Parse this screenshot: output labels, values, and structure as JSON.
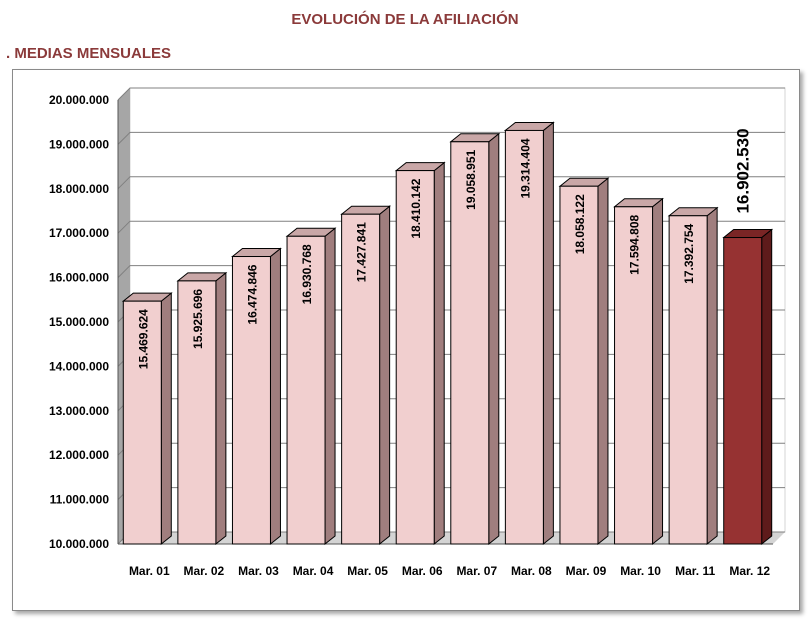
{
  "title": "EVOLUCIÓN DE LA AFILIACIÓN",
  "subtitle": ". MEDIAS MENSUALES",
  "colors": {
    "bar_fill": "#f1cfcf",
    "bar_side": "#a07e7e",
    "bar_top": "#c9a7a7",
    "highlight_fill": "#963232",
    "highlight_side": "#5e1b1b",
    "highlight_top": "#7a2525",
    "wall": "#d4d4d4",
    "wall_side": "#a6a6a6"
  },
  "chart_data": {
    "type": "bar",
    "categories": [
      "Mar. 01",
      "Mar. 02",
      "Mar. 03",
      "Mar. 04",
      "Mar. 05",
      "Mar. 06",
      "Mar. 07",
      "Mar. 08",
      "Mar. 09",
      "Mar. 10",
      "Mar. 11",
      "Mar. 12"
    ],
    "values": [
      15469624,
      15925696,
      16474846,
      16930768,
      17427841,
      18410142,
      19058951,
      19314404,
      18058122,
      17594808,
      17392754,
      16902530
    ],
    "data_labels": [
      "15.469.624",
      "15.925.696",
      "16.474.846",
      "16.930.768",
      "17.427.841",
      "18.410.142",
      "19.058.951",
      "19.314.404",
      "18.058.122",
      "17.594.808",
      "17.392.754",
      "16.902.530"
    ],
    "highlight_index": 11,
    "ylim": [
      10000000,
      20000000
    ],
    "yticks": [
      10000000,
      11000000,
      12000000,
      13000000,
      14000000,
      15000000,
      16000000,
      17000000,
      18000000,
      19000000,
      20000000
    ],
    "ytick_labels": [
      "10.000.000",
      "11.000.000",
      "12.000.000",
      "13.000.000",
      "14.000.000",
      "15.000.000",
      "16.000.000",
      "17.000.000",
      "18.000.000",
      "19.000.000",
      "20.000.000"
    ],
    "grid": true,
    "xlabel": "",
    "ylabel": ""
  }
}
